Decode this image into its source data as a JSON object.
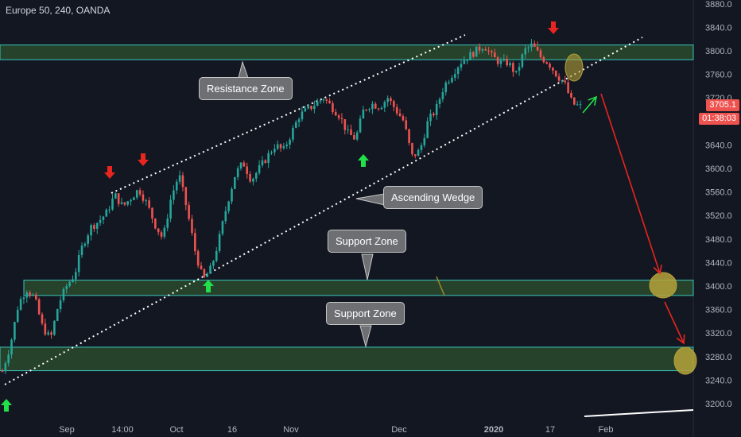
{
  "header": {
    "title": "Europe 50, 240, OANDA"
  },
  "colors": {
    "background": "#131722",
    "up": "#26a69a",
    "down": "#ef5350",
    "zone_fill": "#2c4a2c",
    "zone_border": "#38c6c0",
    "arrow_red": "#e8251f",
    "arrow_green": "#22e04a",
    "ellipse": "#b5a23a"
  },
  "annotations": {
    "resistance_label": "Resistance Zone",
    "wedge_label": "Ascending Wedge",
    "support_label_1": "Support Zone",
    "support_label_2": "Support Zone"
  },
  "price_tags": {
    "last_price": "3705.1",
    "countdown": "01:38:03"
  },
  "chart_data": {
    "type": "candlestick",
    "title": "Europe 50, 240, OANDA",
    "y_ticks": [
      "3200.0",
      "3240.0",
      "3280.0",
      "3320.0",
      "3360.0",
      "3400.0",
      "3440.0",
      "3480.0",
      "3520.0",
      "3560.0",
      "3600.0",
      "3640.0",
      "3680.0",
      "3720.0",
      "3760.0",
      "3800.0",
      "3840.0",
      "3880.0"
    ],
    "ylim": [
      3180,
      3885
    ],
    "x_ticks": [
      "Sep",
      "14:00",
      "Oct",
      "16",
      "Nov",
      "Dec",
      "2020",
      "17",
      "Feb"
    ],
    "price_path": [
      [
        3255,
        3300,
        3370,
        3395,
        3380,
        3330,
        3310,
        3370,
        3400
      ],
      [
        3420,
        3470,
        3500,
        3510,
        3525,
        3555,
        3535,
        3550,
        3565
      ],
      [
        3540,
        3505,
        3480,
        3550,
        3590,
        3530,
        3460
      ],
      [
        3410,
        3430,
        3480,
        3540,
        3590,
        3610,
        3580,
        3600,
        3620,
        3640
      ],
      [
        3630,
        3660,
        3690,
        3700,
        3710,
        3720,
        3705,
        3690,
        3660,
        3650
      ],
      [
        3700,
        3710,
        3705,
        3720,
        3700,
        3680,
        3620,
        3630,
        3680,
        3700,
        3740
      ],
      [
        3760,
        3780,
        3790,
        3800,
        3810,
        3790,
        3780,
        3780,
        3760,
        3800,
        3810,
        3790,
        3780,
        3760,
        3745,
        3710,
        3705.1
      ]
    ],
    "zones": [
      {
        "name": "Resistance Zone",
        "low": 3785,
        "high": 3810
      },
      {
        "name": "Support Zone",
        "low": 3384,
        "high": 3410
      },
      {
        "name": "Support Zone",
        "low": 3256,
        "high": 3296
      }
    ],
    "last_price": 3705.1,
    "countdown": "01:38:03"
  }
}
